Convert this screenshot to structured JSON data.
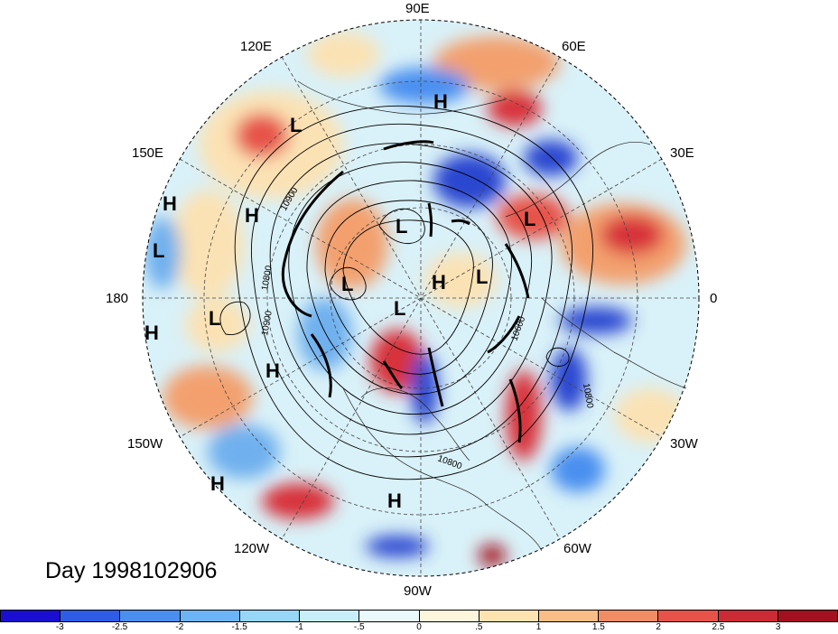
{
  "title": "Day 1998102906",
  "longitude_labels": {
    "east_90": "90E",
    "east_60": "60E",
    "east_120": "120E",
    "east_30": "30E",
    "east_150": "150E",
    "lon_180": "180",
    "lon_0": "0",
    "west_150": "150W",
    "west_30": "30W",
    "west_120": "120W",
    "west_60": "60W",
    "west_90": "90W"
  },
  "pressure_centers": {
    "high": "H",
    "low": "L"
  },
  "contour_labels": {
    "c10900": "10900",
    "c10800": "10800",
    "c10600": "10600"
  },
  "colorbar": {
    "colors": [
      "#1a0fd0",
      "#2f5ce6",
      "#4a8ff0",
      "#6cb4f5",
      "#97d6f7",
      "#c8eef9",
      "#eaf9fb",
      "#fdf6dd",
      "#fde3b0",
      "#f9bd86",
      "#f28d63",
      "#e75349",
      "#cc2b36",
      "#a3101f"
    ],
    "tick_labels": [
      "-3",
      "-2.5",
      "-2",
      "-1.5",
      "-1",
      "-.5",
      "0",
      ".5",
      "1",
      "1.5",
      "2",
      "2.5",
      "3"
    ]
  },
  "map_colors": {
    "positive_strong": "#d8323a",
    "positive": "#f3a06e",
    "positive_weak": "#fbe2b4",
    "negative_strong": "#2b46d0",
    "negative": "#6fb0ee",
    "negative_weak": "#bfe6f5"
  }
}
